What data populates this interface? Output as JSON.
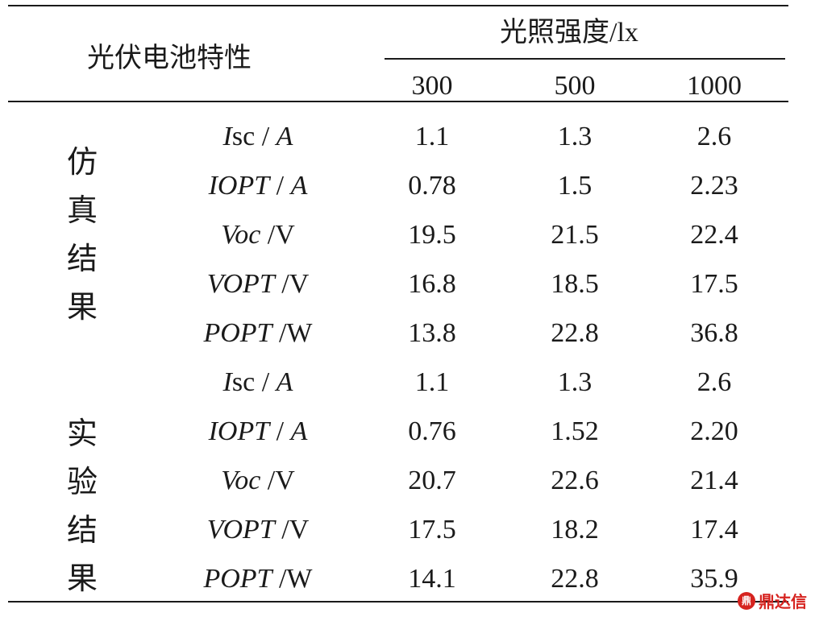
{
  "table": {
    "corner_label": "光伏电池特性",
    "group_header": "光照强度/lx",
    "columns": [
      "300",
      "500",
      "1000"
    ],
    "groups": [
      {
        "label_chars": [
          "仿",
          "真",
          "结",
          "果"
        ],
        "rows": [
          {
            "param_italic": "I",
            "param_rest": "sc / ",
            "unit": "A",
            "unit_italic": true,
            "values": [
              "1.1",
              "1.3",
              "2.6"
            ]
          },
          {
            "param_italic": "IOPT",
            "param_rest": " / ",
            "unit": "A",
            "unit_italic": true,
            "values": [
              "0.78",
              "1.5",
              "2.23"
            ]
          },
          {
            "param_italic": "Voc",
            "param_rest": " /",
            "unit": "V",
            "unit_italic": false,
            "values": [
              "19.5",
              "21.5",
              "22.4"
            ]
          },
          {
            "param_italic": "VOPT",
            "param_rest": " /",
            "unit": "V",
            "unit_italic": false,
            "values": [
              "16.8",
              "18.5",
              "17.5"
            ]
          },
          {
            "param_italic": "POPT",
            "param_rest": " /",
            "unit": "W",
            "unit_italic": false,
            "values": [
              "13.8",
              "22.8",
              "36.8"
            ]
          }
        ]
      },
      {
        "label_chars": [
          "实",
          "验",
          "结",
          "果"
        ],
        "rows": [
          {
            "param_italic": "I",
            "param_rest": "sc / ",
            "unit": "A",
            "unit_italic": true,
            "values": [
              "1.1",
              "1.3",
              "2.6"
            ]
          },
          {
            "param_italic": "IOPT",
            "param_rest": " / ",
            "unit": "A",
            "unit_italic": true,
            "values": [
              "0.76",
              "1.52",
              "2.20"
            ]
          },
          {
            "param_italic": "Voc",
            "param_rest": " /",
            "unit": "V",
            "unit_italic": false,
            "values": [
              "20.7",
              "22.6",
              "21.4"
            ]
          },
          {
            "param_italic": "VOPT",
            "param_rest": " /",
            "unit": "V",
            "unit_italic": false,
            "values": [
              "17.5",
              "18.2",
              "17.4"
            ]
          },
          {
            "param_italic": "POPT",
            "param_rest": " /",
            "unit": "W",
            "unit_italic": false,
            "values": [
              "14.1",
              "22.8",
              "35.9"
            ]
          }
        ]
      }
    ]
  },
  "watermark": {
    "logo_glyph": "鼎",
    "text": "鼎达信",
    "color": "#d6231f"
  }
}
